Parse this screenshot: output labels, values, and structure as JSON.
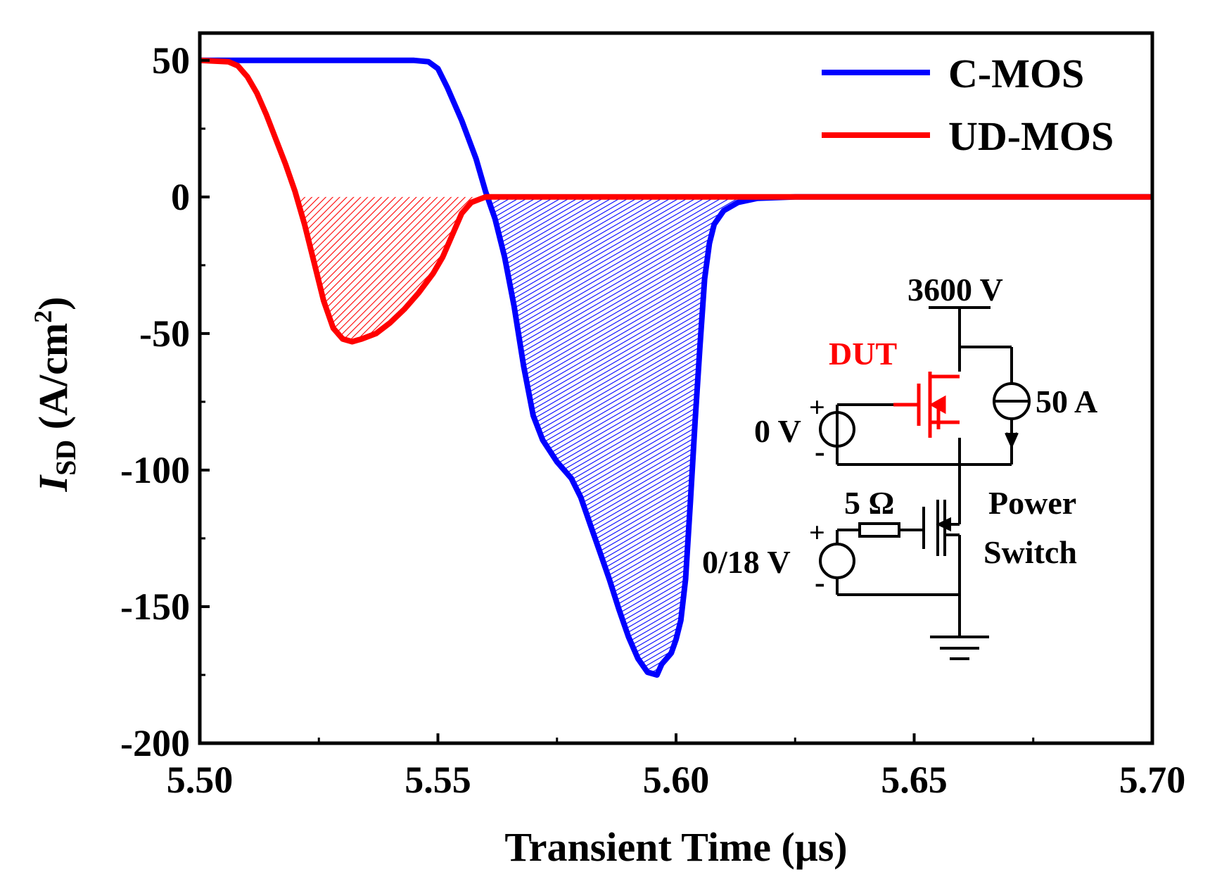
{
  "chart_data": {
    "type": "line",
    "title": "",
    "xlabel": "Transient Time (μs)",
    "ylabel": {
      "symbol": "I",
      "subscript": "SD",
      "units": " (A/cm",
      "power": "2",
      "close": ")"
    },
    "xlim": [
      5.5,
      5.7
    ],
    "ylim": [
      -200,
      60
    ],
    "x_ticks": [
      5.5,
      5.55,
      5.6,
      5.65,
      5.7
    ],
    "x_tick_labels": [
      "5.50",
      "5.55",
      "5.60",
      "5.65",
      "5.70"
    ],
    "y_ticks": [
      50,
      0,
      -50,
      -100,
      -150,
      -200
    ],
    "y_tick_labels": [
      "50",
      "0",
      "-50",
      "-100",
      "-150",
      "-200"
    ],
    "legend_position": "top-right",
    "series": [
      {
        "name": "C-MOS",
        "color": "#0000ff",
        "shaded_area": true,
        "points": [
          [
            5.5,
            50
          ],
          [
            5.545,
            50
          ],
          [
            5.548,
            49.5
          ],
          [
            5.55,
            47
          ],
          [
            5.552,
            40
          ],
          [
            5.555,
            28
          ],
          [
            5.558,
            14
          ],
          [
            5.56,
            2
          ],
          [
            5.562,
            -8
          ],
          [
            5.564,
            -22
          ],
          [
            5.566,
            -40
          ],
          [
            5.568,
            -62
          ],
          [
            5.57,
            -80
          ],
          [
            5.572,
            -89
          ],
          [
            5.575,
            -97
          ],
          [
            5.578,
            -103
          ],
          [
            5.58,
            -110
          ],
          [
            5.582,
            -120
          ],
          [
            5.584,
            -130
          ],
          [
            5.586,
            -140
          ],
          [
            5.588,
            -151
          ],
          [
            5.59,
            -161
          ],
          [
            5.592,
            -169
          ],
          [
            5.594,
            -174
          ],
          [
            5.596,
            -175
          ],
          [
            5.597,
            -171
          ],
          [
            5.598,
            -169
          ],
          [
            5.599,
            -167
          ],
          [
            5.6,
            -162
          ],
          [
            5.601,
            -155
          ],
          [
            5.602,
            -140
          ],
          [
            5.603,
            -112
          ],
          [
            5.604,
            -82
          ],
          [
            5.605,
            -55
          ],
          [
            5.606,
            -30
          ],
          [
            5.607,
            -17
          ],
          [
            5.608,
            -10
          ],
          [
            5.61,
            -5
          ],
          [
            5.613,
            -2
          ],
          [
            5.617,
            -0.5
          ],
          [
            5.625,
            0
          ],
          [
            5.7,
            0
          ]
        ]
      },
      {
        "name": "UD-MOS",
        "color": "#ff0000",
        "shaded_area": true,
        "points": [
          [
            5.5,
            50
          ],
          [
            5.506,
            49.5
          ],
          [
            5.508,
            48
          ],
          [
            5.51,
            44
          ],
          [
            5.512,
            38
          ],
          [
            5.514,
            30
          ],
          [
            5.516,
            21
          ],
          [
            5.518,
            12
          ],
          [
            5.52,
            2
          ],
          [
            5.522,
            -10
          ],
          [
            5.524,
            -24
          ],
          [
            5.526,
            -38
          ],
          [
            5.528,
            -48
          ],
          [
            5.53,
            -52
          ],
          [
            5.532,
            -53
          ],
          [
            5.534,
            -52
          ],
          [
            5.537,
            -50
          ],
          [
            5.54,
            -46
          ],
          [
            5.543,
            -41
          ],
          [
            5.546,
            -35
          ],
          [
            5.549,
            -28
          ],
          [
            5.551,
            -22
          ],
          [
            5.553,
            -14
          ],
          [
            5.555,
            -6
          ],
          [
            5.557,
            -2
          ],
          [
            5.56,
            0
          ],
          [
            5.7,
            0
          ]
        ]
      }
    ]
  },
  "inset_circuit": {
    "supply_label": "3600 V",
    "dut_label": "DUT",
    "dut_color": "#ff0000",
    "current_source_label": "50 A",
    "gate_dut_label": "0 V",
    "gate_switch_label": "0/18 V",
    "resistor_label": "5 Ω",
    "plus_sign": "+",
    "minus_sign": "-",
    "switch_label_line1": "Power",
    "switch_label_line2": "Switch"
  }
}
